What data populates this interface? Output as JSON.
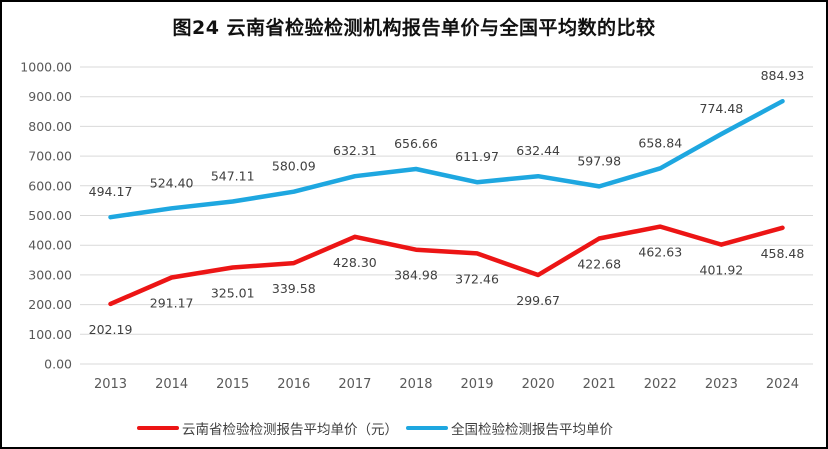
{
  "title": "图24 云南省检验检测机构报告单价与全国平均数的比较",
  "colors": {
    "yunnan_series": "#ec1515",
    "national_series": "#1ea7e0",
    "gridline": "#d9d9d9",
    "axis_text": "#595959",
    "data_label_text": "#404040",
    "border": "#000000",
    "background": "#ffffff"
  },
  "chart_data": {
    "type": "line",
    "title": "图24 云南省检验检测机构报告单价与全国平均数的比较",
    "categories": [
      "2013",
      "2014",
      "2015",
      "2016",
      "2017",
      "2018",
      "2019",
      "2020",
      "2021",
      "2022",
      "2023",
      "2024"
    ],
    "series": [
      {
        "name": "云南省检验检测报告平均单价（元）",
        "color": "#ec1515",
        "label_position": "below",
        "values": [
          202.19,
          291.17,
          325.01,
          339.58,
          428.3,
          384.98,
          372.46,
          299.67,
          422.68,
          462.63,
          401.92,
          458.48
        ]
      },
      {
        "name": "全国检验检测报告平均单价",
        "color": "#1ea7e0",
        "label_position": "above",
        "values": [
          494.17,
          524.4,
          547.11,
          580.09,
          632.31,
          656.66,
          611.97,
          632.44,
          597.98,
          658.84,
          774.48,
          884.93
        ]
      }
    ],
    "ylim": [
      0,
      1000
    ],
    "ytick_step": 100,
    "yticks": [
      "0.00",
      "100.00",
      "200.00",
      "300.00",
      "400.00",
      "500.00",
      "600.00",
      "700.00",
      "800.00",
      "900.00",
      "1000.00"
    ],
    "grid": true,
    "data_labels": true,
    "legend_position": "bottom"
  }
}
